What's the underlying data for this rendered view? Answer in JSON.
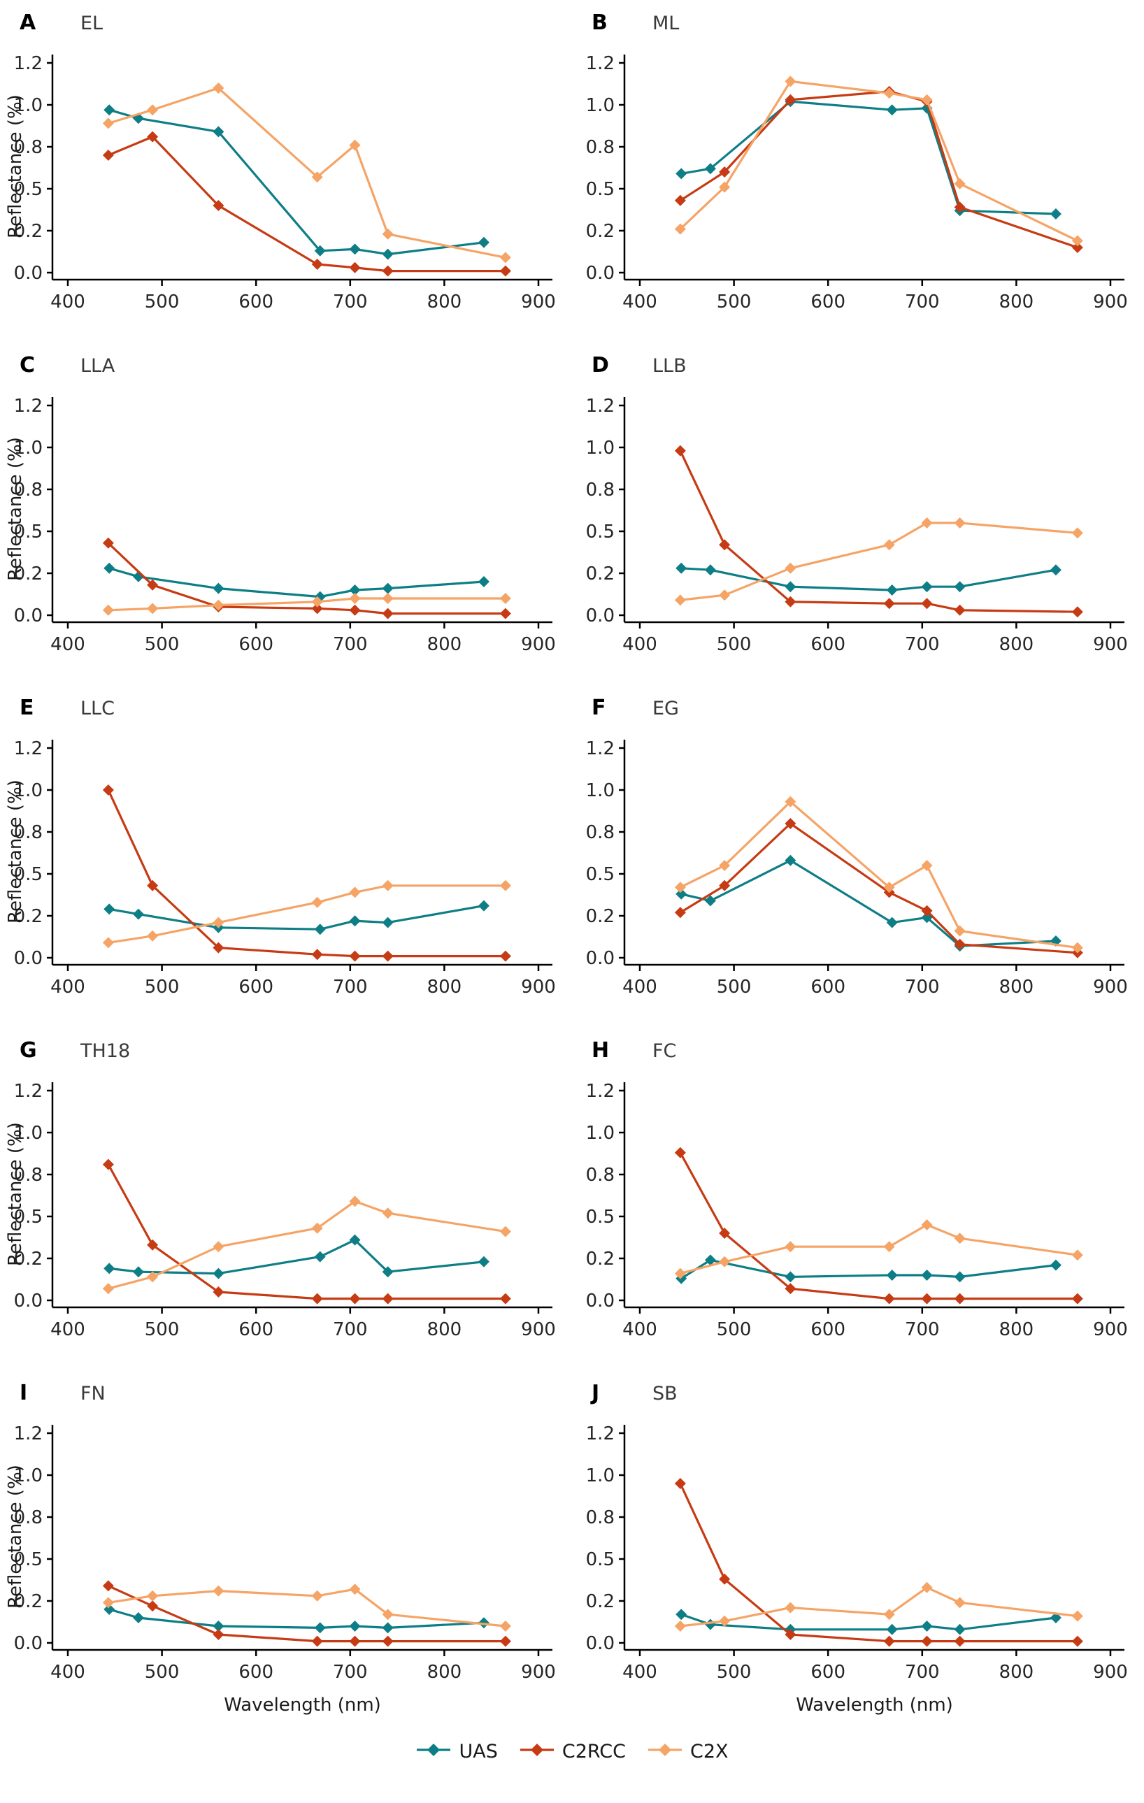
{
  "figure": {
    "description": "Reflectance spectra comparison at ten sites",
    "panel_rows": 5,
    "panel_cols": 2
  },
  "axis": {
    "xlabel": "Wavelength (nm)",
    "ylabel": "Reflectance (%)",
    "x_ticks": [
      400,
      500,
      600,
      700,
      800,
      900
    ],
    "y_ticks": [
      0,
      0.25,
      0.5,
      0.75,
      1.0,
      1.25
    ],
    "y_tick_labels": [
      "0.0",
      "0.2",
      "0.5",
      "0.8",
      "1.0",
      "1.2"
    ],
    "xlim": [
      400,
      900
    ],
    "ylim": [
      0,
      1.25
    ],
    "grid": "off",
    "legend_position": "bottom"
  },
  "legend": {
    "items": [
      {
        "label": "UAS",
        "color": "#0E7E86"
      },
      {
        "label": "C2RCC",
        "color": "#C63B13"
      },
      {
        "label": "C2X",
        "color": "#F5A466"
      }
    ]
  },
  "colors": {
    "uas_teal": "#0E7E86",
    "c2rcc_red": "#C63B13",
    "c2x_orange": "#F5A466",
    "axis_black": "#000000",
    "tick_text": "#262626",
    "site_text": "#3a3a3a"
  },
  "chart_data": [
    {
      "panel": "A",
      "site": "EL",
      "type": "line",
      "series": [
        {
          "name": "UAS",
          "x": [
            444,
            475,
            560,
            668,
            705,
            740,
            842
          ],
          "y": [
            0.97,
            0.92,
            0.84,
            0.13,
            0.14,
            0.11,
            0.18
          ]
        },
        {
          "name": "C2RCC",
          "x": [
            443,
            490,
            560,
            665,
            705,
            740,
            865
          ],
          "y": [
            0.7,
            0.81,
            0.4,
            0.05,
            0.03,
            0.01,
            0.01
          ]
        },
        {
          "name": "C2X",
          "x": [
            443,
            490,
            560,
            665,
            705,
            740,
            865
          ],
          "y": [
            0.89,
            0.97,
            1.1,
            0.57,
            0.76,
            0.23,
            0.09
          ]
        }
      ]
    },
    {
      "panel": "B",
      "site": "ML",
      "type": "line",
      "series": [
        {
          "name": "UAS",
          "x": [
            444,
            475,
            560,
            668,
            705,
            740,
            842
          ],
          "y": [
            0.59,
            0.62,
            1.02,
            0.97,
            0.98,
            0.37,
            0.35
          ]
        },
        {
          "name": "C2RCC",
          "x": [
            443,
            490,
            560,
            665,
            705,
            740,
            865
          ],
          "y": [
            0.43,
            0.6,
            1.03,
            1.08,
            1.02,
            0.39,
            0.15
          ]
        },
        {
          "name": "C2X",
          "x": [
            443,
            490,
            560,
            665,
            705,
            740,
            865
          ],
          "y": [
            0.26,
            0.51,
            1.14,
            1.07,
            1.03,
            0.53,
            0.19
          ]
        }
      ]
    },
    {
      "panel": "C",
      "site": "LLA",
      "type": "line",
      "series": [
        {
          "name": "UAS",
          "x": [
            444,
            475,
            560,
            668,
            705,
            740,
            842
          ],
          "y": [
            0.28,
            0.23,
            0.16,
            0.11,
            0.15,
            0.16,
            0.2
          ]
        },
        {
          "name": "C2RCC",
          "x": [
            443,
            490,
            560,
            665,
            705,
            740,
            865
          ],
          "y": [
            0.43,
            0.18,
            0.05,
            0.04,
            0.03,
            0.01,
            0.01
          ]
        },
        {
          "name": "C2X",
          "x": [
            443,
            490,
            560,
            665,
            705,
            740,
            865
          ],
          "y": [
            0.03,
            0.04,
            0.06,
            0.08,
            0.1,
            0.1,
            0.1
          ]
        }
      ]
    },
    {
      "panel": "D",
      "site": "LLB",
      "type": "line",
      "series": [
        {
          "name": "UAS",
          "x": [
            444,
            475,
            560,
            668,
            705,
            740,
            842
          ],
          "y": [
            0.28,
            0.27,
            0.17,
            0.15,
            0.17,
            0.17,
            0.27
          ]
        },
        {
          "name": "C2RCC",
          "x": [
            443,
            490,
            560,
            665,
            705,
            740,
            865
          ],
          "y": [
            0.98,
            0.42,
            0.08,
            0.07,
            0.07,
            0.03,
            0.02
          ]
        },
        {
          "name": "C2X",
          "x": [
            443,
            490,
            560,
            665,
            705,
            740,
            865
          ],
          "y": [
            0.09,
            0.12,
            0.28,
            0.42,
            0.55,
            0.55,
            0.49
          ]
        }
      ]
    },
    {
      "panel": "E",
      "site": "LLC",
      "type": "line",
      "series": [
        {
          "name": "UAS",
          "x": [
            444,
            475,
            560,
            668,
            705,
            740,
            842
          ],
          "y": [
            0.29,
            0.26,
            0.18,
            0.17,
            0.22,
            0.21,
            0.31
          ]
        },
        {
          "name": "C2RCC",
          "x": [
            443,
            490,
            560,
            665,
            705,
            740,
            865
          ],
          "y": [
            1.0,
            0.43,
            0.06,
            0.02,
            0.01,
            0.01,
            0.01
          ]
        },
        {
          "name": "C2X",
          "x": [
            443,
            490,
            560,
            665,
            705,
            740,
            865
          ],
          "y": [
            0.09,
            0.13,
            0.21,
            0.33,
            0.39,
            0.43,
            0.43
          ]
        }
      ]
    },
    {
      "panel": "F",
      "site": "EG",
      "type": "line",
      "series": [
        {
          "name": "UAS",
          "x": [
            444,
            475,
            560,
            668,
            705,
            740,
            842
          ],
          "y": [
            0.38,
            0.34,
            0.58,
            0.21,
            0.24,
            0.07,
            0.1
          ]
        },
        {
          "name": "C2RCC",
          "x": [
            443,
            490,
            560,
            665,
            705,
            740,
            865
          ],
          "y": [
            0.27,
            0.43,
            0.8,
            0.39,
            0.28,
            0.08,
            0.03
          ]
        },
        {
          "name": "C2X",
          "x": [
            443,
            490,
            560,
            665,
            705,
            740,
            865
          ],
          "y": [
            0.42,
            0.55,
            0.93,
            0.42,
            0.55,
            0.16,
            0.06
          ]
        }
      ]
    },
    {
      "panel": "G",
      "site": "TH18",
      "type": "line",
      "series": [
        {
          "name": "UAS",
          "x": [
            444,
            475,
            560,
            668,
            705,
            740,
            842
          ],
          "y": [
            0.19,
            0.17,
            0.16,
            0.26,
            0.36,
            0.17,
            0.23
          ]
        },
        {
          "name": "C2RCC",
          "x": [
            443,
            490,
            560,
            665,
            705,
            740,
            865
          ],
          "y": [
            0.81,
            0.33,
            0.05,
            0.01,
            0.01,
            0.01,
            0.01
          ]
        },
        {
          "name": "C2X",
          "x": [
            443,
            490,
            560,
            665,
            705,
            740,
            865
          ],
          "y": [
            0.07,
            0.14,
            0.32,
            0.43,
            0.59,
            0.52,
            0.41
          ]
        }
      ]
    },
    {
      "panel": "H",
      "site": "FC",
      "type": "line",
      "series": [
        {
          "name": "UAS",
          "x": [
            444,
            475,
            560,
            668,
            705,
            740,
            842
          ],
          "y": [
            0.13,
            0.24,
            0.14,
            0.15,
            0.15,
            0.14,
            0.21
          ]
        },
        {
          "name": "C2RCC",
          "x": [
            443,
            490,
            560,
            665,
            705,
            740,
            865
          ],
          "y": [
            0.88,
            0.4,
            0.07,
            0.01,
            0.01,
            0.01,
            0.01
          ]
        },
        {
          "name": "C2X",
          "x": [
            443,
            490,
            560,
            665,
            705,
            740,
            865
          ],
          "y": [
            0.16,
            0.23,
            0.32,
            0.32,
            0.45,
            0.37,
            0.27
          ]
        }
      ]
    },
    {
      "panel": "I",
      "site": "FN",
      "type": "line",
      "series": [
        {
          "name": "UAS",
          "x": [
            444,
            475,
            560,
            668,
            705,
            740,
            842
          ],
          "y": [
            0.2,
            0.15,
            0.1,
            0.09,
            0.1,
            0.09,
            0.12
          ]
        },
        {
          "name": "C2RCC",
          "x": [
            443,
            490,
            560,
            665,
            705,
            740,
            865
          ],
          "y": [
            0.34,
            0.22,
            0.05,
            0.01,
            0.01,
            0.01,
            0.01
          ]
        },
        {
          "name": "C2X",
          "x": [
            443,
            490,
            560,
            665,
            705,
            740,
            865
          ],
          "y": [
            0.24,
            0.28,
            0.31,
            0.28,
            0.32,
            0.17,
            0.1
          ]
        }
      ]
    },
    {
      "panel": "J",
      "site": "SB",
      "type": "line",
      "series": [
        {
          "name": "UAS",
          "x": [
            444,
            475,
            560,
            668,
            705,
            740,
            842
          ],
          "y": [
            0.17,
            0.11,
            0.08,
            0.08,
            0.1,
            0.08,
            0.15
          ]
        },
        {
          "name": "C2RCC",
          "x": [
            443,
            490,
            560,
            665,
            705,
            740,
            865
          ],
          "y": [
            0.95,
            0.38,
            0.05,
            0.01,
            0.01,
            0.01,
            0.01
          ]
        },
        {
          "name": "C2X",
          "x": [
            443,
            490,
            560,
            665,
            705,
            740,
            865
          ],
          "y": [
            0.1,
            0.13,
            0.21,
            0.17,
            0.33,
            0.24,
            0.16
          ]
        }
      ]
    }
  ]
}
